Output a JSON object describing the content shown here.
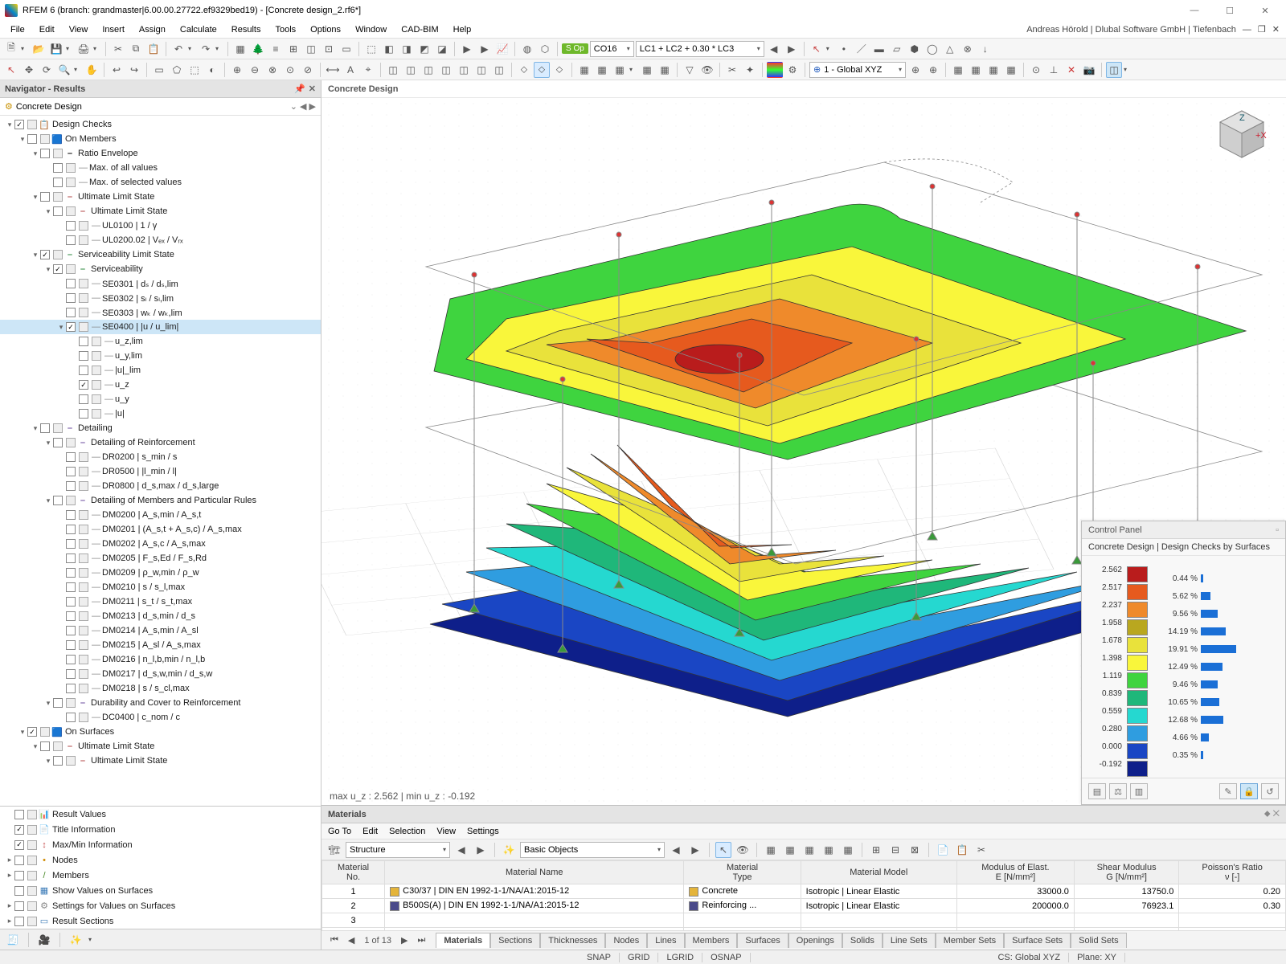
{
  "window": {
    "title": "RFEM 6 (branch: grandmaster|6.00.00.27722.ef9329bed19) - [Concrete design_2.rf6*]"
  },
  "user": {
    "line": "Andreas Hörold | Dlubal Software GmbH | Tiefenbach"
  },
  "menu": [
    "File",
    "Edit",
    "View",
    "Insert",
    "Assign",
    "Calculate",
    "Results",
    "Tools",
    "Options",
    "Window",
    "CAD-BIM",
    "Help"
  ],
  "combo1": {
    "code": "CO16",
    "text": "LC1 + LC2 + 0.30 * LC3",
    "cs": "1 - Global XYZ"
  },
  "nav": {
    "title": "Navigator - Results",
    "sub": "Concrete Design",
    "tree": [
      {
        "d": 0,
        "tw": "▾",
        "cb": "x",
        "ico": "📋",
        "txt": "Design Checks"
      },
      {
        "d": 1,
        "tw": "▾",
        "cb": "",
        "ico": "🟦",
        "txt": "On Members",
        "c": "#d08a00"
      },
      {
        "d": 2,
        "tw": "▾",
        "cb": "",
        "ico": "⎯",
        "txt": "Ratio Envelope"
      },
      {
        "d": 3,
        "tw": "",
        "cb": "",
        "dash": 1,
        "txt": "Max. of all values"
      },
      {
        "d": 3,
        "tw": "",
        "cb": "",
        "dash": 1,
        "txt": "Max. of selected values"
      },
      {
        "d": 2,
        "tw": "▾",
        "cb": "",
        "ico": "⎯",
        "txt": "Ultimate Limit State",
        "c": "#b34747"
      },
      {
        "d": 3,
        "tw": "▾",
        "cb": "",
        "ico": "⎯",
        "txt": "Ultimate Limit State",
        "c": "#b34747"
      },
      {
        "d": 4,
        "tw": "",
        "cb": "",
        "dash": 1,
        "txt": "UL0100 | 1 / γ"
      },
      {
        "d": 4,
        "tw": "",
        "cb": "",
        "dash": 1,
        "txt": "UL0200.02 | Vₑₓ / Vᵣₓ"
      },
      {
        "d": 2,
        "tw": "▾",
        "cb": "x",
        "ico": "⎯",
        "txt": "Serviceability Limit State",
        "c": "#2b8a3e"
      },
      {
        "d": 3,
        "tw": "▾",
        "cb": "x",
        "ico": "⎯",
        "txt": "Serviceability",
        "c": "#2b8a3e"
      },
      {
        "d": 4,
        "tw": "",
        "cb": "",
        "dash": 1,
        "txt": "SE0301 | dₛ / dₛ,lim"
      },
      {
        "d": 4,
        "tw": "",
        "cb": "",
        "dash": 1,
        "txt": "SE0302 | sₗ / sₗ,lim"
      },
      {
        "d": 4,
        "tw": "",
        "cb": "",
        "dash": 1,
        "txt": "SE0303 | wₖ / wₖ,lim"
      },
      {
        "d": 4,
        "tw": "▾",
        "cb": "x",
        "dash": 1,
        "txt": "SE0400 | |u / u_lim|",
        "sel": 1
      },
      {
        "d": 5,
        "tw": "",
        "cb": "",
        "dash": 1,
        "txt": "u_z,lim"
      },
      {
        "d": 5,
        "tw": "",
        "cb": "",
        "dash": 1,
        "txt": "u_y,lim"
      },
      {
        "d": 5,
        "tw": "",
        "cb": "",
        "dash": 1,
        "txt": "|u|_lim"
      },
      {
        "d": 5,
        "tw": "",
        "cb": "x",
        "dash": 1,
        "txt": "u_z"
      },
      {
        "d": 5,
        "tw": "",
        "cb": "",
        "dash": 1,
        "txt": "u_y"
      },
      {
        "d": 5,
        "tw": "",
        "cb": "",
        "dash": 1,
        "txt": "|u|"
      },
      {
        "d": 2,
        "tw": "▾",
        "cb": "",
        "ico": "⎯",
        "txt": "Detailing",
        "c": "#6a4a9c"
      },
      {
        "d": 3,
        "tw": "▾",
        "cb": "",
        "ico": "⎯",
        "txt": "Detailing of Reinforcement",
        "c": "#6a4a9c"
      },
      {
        "d": 4,
        "tw": "",
        "cb": "",
        "dash": 1,
        "txt": "DR0200 | s_min / s"
      },
      {
        "d": 4,
        "tw": "",
        "cb": "",
        "dash": 1,
        "txt": "DR0500 | |l_min / l|"
      },
      {
        "d": 4,
        "tw": "",
        "cb": "",
        "dash": 1,
        "txt": "DR0800 | d_s,max / d_s,large"
      },
      {
        "d": 3,
        "tw": "▾",
        "cb": "",
        "ico": "⎯",
        "txt": "Detailing of Members and Particular Rules",
        "c": "#6a4a9c"
      },
      {
        "d": 4,
        "tw": "",
        "cb": "",
        "dash": 1,
        "txt": "DM0200 | A_s,min / A_s,t"
      },
      {
        "d": 4,
        "tw": "",
        "cb": "",
        "dash": 1,
        "txt": "DM0201 | (A_s,t + A_s,c) / A_s,max"
      },
      {
        "d": 4,
        "tw": "",
        "cb": "",
        "dash": 1,
        "txt": "DM0202 | A_s,c / A_s,max"
      },
      {
        "d": 4,
        "tw": "",
        "cb": "",
        "dash": 1,
        "txt": "DM0205 | F_s,Ed / F_s,Rd"
      },
      {
        "d": 4,
        "tw": "",
        "cb": "",
        "dash": 1,
        "txt": "DM0209 | ρ_w,min / ρ_w"
      },
      {
        "d": 4,
        "tw": "",
        "cb": "",
        "dash": 1,
        "txt": "DM0210 | s / s_l,max"
      },
      {
        "d": 4,
        "tw": "",
        "cb": "",
        "dash": 1,
        "txt": "DM0211 | s_t / s_t,max"
      },
      {
        "d": 4,
        "tw": "",
        "cb": "",
        "dash": 1,
        "txt": "DM0213 | d_s,min / d_s"
      },
      {
        "d": 4,
        "tw": "",
        "cb": "",
        "dash": 1,
        "txt": "DM0214 | A_s,min / A_sl"
      },
      {
        "d": 4,
        "tw": "",
        "cb": "",
        "dash": 1,
        "txt": "DM0215 | A_sl / A_s,max"
      },
      {
        "d": 4,
        "tw": "",
        "cb": "",
        "dash": 1,
        "txt": "DM0216 | n_l,b,min / n_l,b"
      },
      {
        "d": 4,
        "tw": "",
        "cb": "",
        "dash": 1,
        "txt": "DM0217 | d_s,w,min / d_s,w"
      },
      {
        "d": 4,
        "tw": "",
        "cb": "",
        "dash": 1,
        "txt": "DM0218 | s / s_cl,max"
      },
      {
        "d": 3,
        "tw": "▾",
        "cb": "",
        "ico": "⎯",
        "txt": "Durability and Cover to Reinforcement",
        "c": "#6a4a9c"
      },
      {
        "d": 4,
        "tw": "",
        "cb": "",
        "dash": 1,
        "txt": "DC0400 | c_nom / c"
      },
      {
        "d": 1,
        "tw": "▾",
        "cb": "x",
        "ico": "🟦",
        "txt": "On Surfaces",
        "c": "#d08a00"
      },
      {
        "d": 2,
        "tw": "▾",
        "cb": "",
        "ico": "⎯",
        "txt": "Ultimate Limit State",
        "c": "#b34747"
      },
      {
        "d": 3,
        "tw": "▾",
        "cb": "",
        "ico": "⎯",
        "txt": "Ultimate Limit State",
        "c": "#b34747"
      }
    ],
    "btm": [
      {
        "cb": "",
        "ico": "📊",
        "txt": "Result Values",
        "c": "#c64d4d"
      },
      {
        "cb": "x",
        "ico": "📄",
        "txt": "Title Information",
        "c": "#4d87c6"
      },
      {
        "cb": "x",
        "ico": "↕",
        "txt": "Max/Min Information",
        "c": "#c64d4d"
      },
      {
        "cb": "",
        "ico": "•",
        "txt": "Nodes",
        "c": "#d08a00",
        "tw": "▸"
      },
      {
        "cb": "",
        "ico": "/",
        "txt": "Members",
        "c": "#4a8a2b",
        "tw": "▸"
      },
      {
        "cb": "",
        "ico": "▦",
        "txt": "Show Values on Surfaces",
        "c": "#3a7ab7"
      },
      {
        "cb": "",
        "ico": "⚙",
        "txt": "Settings for Values on Surfaces",
        "c": "#888",
        "tw": "▸"
      },
      {
        "cb": "",
        "ico": "▭",
        "txt": "Result Sections",
        "c": "#3a7ab7",
        "tw": "▸"
      }
    ]
  },
  "view": {
    "title": "Concrete Design",
    "status": "max u_z : 2.562 | min u_z : -0.192"
  },
  "panel": {
    "title": "Control Panel",
    "sub": "Concrete Design | Design Checks by Surfaces",
    "vals": [
      "2.562",
      "2.517",
      "2.237",
      "1.958",
      "1.678",
      "1.398",
      "1.119",
      "0.839",
      "0.559",
      "0.280",
      "0.000",
      "-0.192"
    ],
    "cols": [
      "#b91c1c",
      "#e65a1e",
      "#ef8a2b",
      "#b9a71f",
      "#e9e23b",
      "#f9f63b",
      "#3fd43f",
      "#1fb77a",
      "#25d8d0",
      "#2f9de0",
      "#1a46c4",
      "#0e1f8a"
    ],
    "pcts": [
      "0.44 %",
      "5.62 %",
      "9.56 %",
      "14.19 %",
      "19.91 %",
      "12.49 %",
      "9.46 %",
      "10.65 %",
      "12.68 %",
      "4.66 %",
      "0.35 %"
    ]
  },
  "materials": {
    "title": "Materials",
    "menu": [
      "Go To",
      "Edit",
      "Selection",
      "View",
      "Settings"
    ],
    "combo1": "Structure",
    "combo2": "Basic Objects",
    "cols": [
      "Material\nNo.",
      "Material Name",
      "Material\nType",
      "Material Model",
      "Modulus of Elast.\nE [N/mm²]",
      "Shear Modulus\nG [N/mm²]",
      "Poisson's Ratio\nν [-]"
    ],
    "rows": [
      {
        "no": "1",
        "sw": "#e4b43a",
        "name": "C30/37 | DIN EN 1992-1-1/NA/A1:2015-12",
        "type": "Concrete",
        "tsw": "#e4b43a",
        "model": "Isotropic | Linear Elastic",
        "e": "33000.0",
        "g": "13750.0",
        "v": "0.20"
      },
      {
        "no": "2",
        "sw": "#4a4a8a",
        "name": "B500S(A) | DIN EN 1992-1-1/NA/A1:2015-12",
        "type": "Reinforcing ...",
        "tsw": "#4a4a8a",
        "model": "Isotropic | Linear Elastic",
        "e": "200000.0",
        "g": "76923.1",
        "v": "0.30"
      }
    ],
    "pager": "1 of 13",
    "tabs": [
      "Materials",
      "Sections",
      "Thicknesses",
      "Nodes",
      "Lines",
      "Members",
      "Surfaces",
      "Openings",
      "Solids",
      "Line Sets",
      "Member Sets",
      "Surface Sets",
      "Solid Sets"
    ]
  },
  "status": {
    "snap": "SNAP",
    "grid": "GRID",
    "lgrid": "LGRID",
    "osnap": "OSNAP",
    "cs": "CS: Global XYZ",
    "plane": "Plane: XY"
  }
}
